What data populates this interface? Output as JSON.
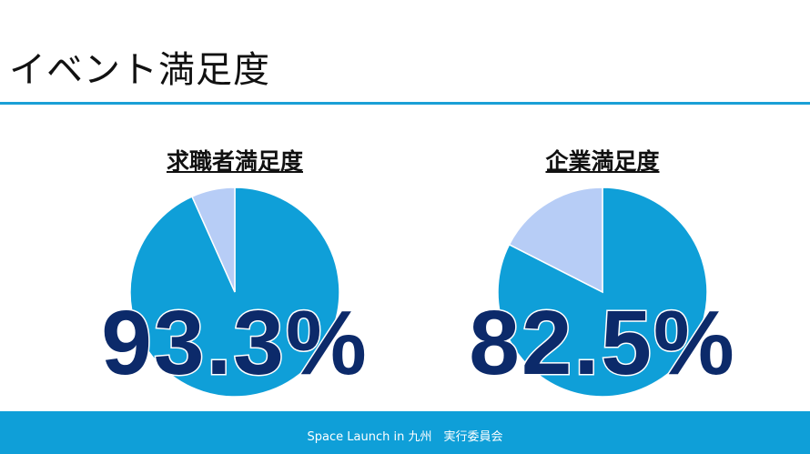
{
  "header": {
    "title": "イベント満足度"
  },
  "footer": {
    "text": "Space Launch in 九州　実行委員会"
  },
  "colors": {
    "main": "#0f9fd8",
    "remainder": "#b7cdf6",
    "value_text": "#0c2a6a"
  },
  "chart_data": [
    {
      "type": "pie",
      "title": "求職者満足度",
      "values": [
        93.3,
        6.7
      ],
      "label": "93.3%"
    },
    {
      "type": "pie",
      "title": "企業満足度",
      "values": [
        82.5,
        17.5
      ],
      "label": "82.5%"
    }
  ]
}
